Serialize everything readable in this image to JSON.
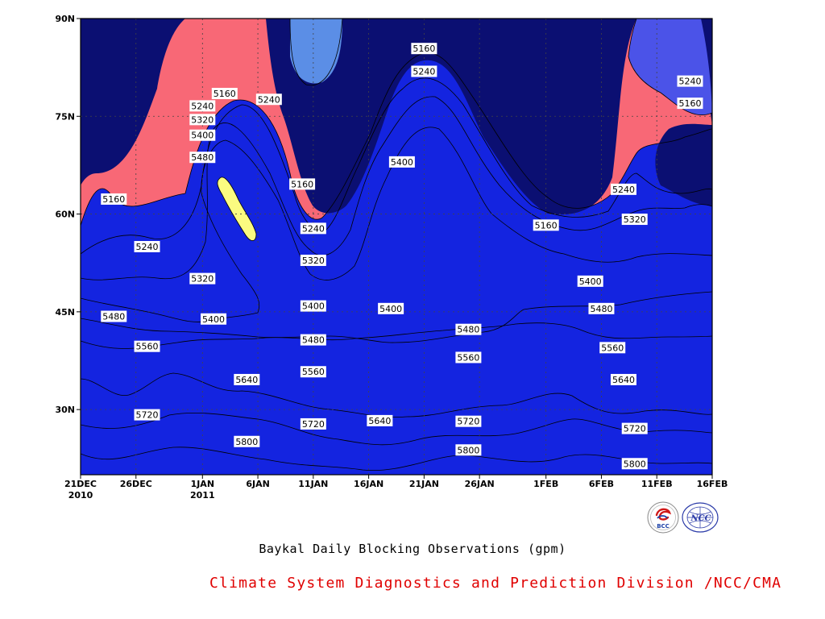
{
  "chart_data": {
    "type": "heatmap",
    "subtype": "filled-contour",
    "title": "Baykal Daily Blocking Observations (gpm)",
    "x_axis": {
      "type": "date",
      "range": [
        "2010-12-21",
        "2011-02-16"
      ],
      "ticks": [
        {
          "date": "2010-12-21",
          "label": "21DEC",
          "sublabel": "2010"
        },
        {
          "date": "2010-12-26",
          "label": "26DEC",
          "sublabel": ""
        },
        {
          "date": "2011-01-01",
          "label": "1JAN",
          "sublabel": "2011"
        },
        {
          "date": "2011-01-06",
          "label": "6JAN",
          "sublabel": ""
        },
        {
          "date": "2011-01-11",
          "label": "11JAN",
          "sublabel": ""
        },
        {
          "date": "2011-01-16",
          "label": "16JAN",
          "sublabel": ""
        },
        {
          "date": "2011-01-21",
          "label": "21JAN",
          "sublabel": ""
        },
        {
          "date": "2011-01-26",
          "label": "26JAN",
          "sublabel": ""
        },
        {
          "date": "2011-02-01",
          "label": "1FEB",
          "sublabel": ""
        },
        {
          "date": "2011-02-06",
          "label": "6FEB",
          "sublabel": ""
        },
        {
          "date": "2011-02-11",
          "label": "11FEB",
          "sublabel": ""
        },
        {
          "date": "2011-02-16",
          "label": "16FEB",
          "sublabel": ""
        }
      ]
    },
    "y_axis": {
      "range": [
        20,
        90
      ],
      "ticks": [
        {
          "value": 30,
          "label": "30N"
        },
        {
          "value": 45,
          "label": "45N"
        },
        {
          "value": 60,
          "label": "60N"
        },
        {
          "value": 75,
          "label": "75N"
        },
        {
          "value": 90,
          "label": "90N"
        }
      ]
    },
    "grid": true,
    "levels": [
      5160,
      5240,
      5320,
      5400,
      5480,
      5560,
      5640,
      5720,
      5800
    ],
    "fill_colors": [
      "#0b0f72",
      "#1424e0",
      "#4b53e8",
      "#5b8ee6",
      "#6ac8fa",
      "#fbfb80",
      "#fde3a4",
      "#fca86c",
      "#fb7a46",
      "#f86876"
    ],
    "contour_labels": [
      {
        "value": 5160,
        "date": "2010-12-24",
        "lat": 62.3
      },
      {
        "value": 5240,
        "date": "2010-12-27",
        "lat": 55.0
      },
      {
        "value": 5320,
        "date": "2011-01-01",
        "lat": 50.1
      },
      {
        "value": 5400,
        "date": "2011-01-02",
        "lat": 43.9
      },
      {
        "value": 5480,
        "date": "2010-12-24",
        "lat": 44.3
      },
      {
        "value": 5560,
        "date": "2010-12-27",
        "lat": 39.7
      },
      {
        "value": 5640,
        "date": "2011-01-05",
        "lat": 34.6
      },
      {
        "value": 5720,
        "date": "2010-12-27",
        "lat": 29.2
      },
      {
        "value": 5800,
        "date": "2011-01-05",
        "lat": 25.1
      },
      {
        "value": 5160,
        "date": "2011-01-03",
        "lat": 78.5
      },
      {
        "value": 5240,
        "date": "2011-01-01",
        "lat": 76.6
      },
      {
        "value": 5320,
        "date": "2011-01-01",
        "lat": 74.5
      },
      {
        "value": 5400,
        "date": "2011-01-01",
        "lat": 72.1
      },
      {
        "value": 5480,
        "date": "2011-01-01",
        "lat": 68.7
      },
      {
        "value": 5240,
        "date": "2011-01-07",
        "lat": 77.6
      },
      {
        "value": 5160,
        "date": "2011-01-10",
        "lat": 64.6
      },
      {
        "value": 5240,
        "date": "2011-01-11",
        "lat": 57.8
      },
      {
        "value": 5320,
        "date": "2011-01-11",
        "lat": 52.9
      },
      {
        "value": 5400,
        "date": "2011-01-11",
        "lat": 45.9
      },
      {
        "value": 5480,
        "date": "2011-01-11",
        "lat": 40.7
      },
      {
        "value": 5560,
        "date": "2011-01-11",
        "lat": 35.8
      },
      {
        "value": 5720,
        "date": "2011-01-11",
        "lat": 27.8
      },
      {
        "value": 5400,
        "date": "2011-01-18",
        "lat": 45.5
      },
      {
        "value": 5640,
        "date": "2011-01-17",
        "lat": 28.3
      },
      {
        "value": 5160,
        "date": "2011-01-21",
        "lat": 85.4
      },
      {
        "value": 5240,
        "date": "2011-01-21",
        "lat": 81.9
      },
      {
        "value": 5400,
        "date": "2011-01-19",
        "lat": 68.0
      },
      {
        "value": 5480,
        "date": "2011-01-25",
        "lat": 42.3
      },
      {
        "value": 5560,
        "date": "2011-01-25",
        "lat": 38.0
      },
      {
        "value": 5720,
        "date": "2011-01-25",
        "lat": 28.2
      },
      {
        "value": 5800,
        "date": "2011-01-25",
        "lat": 23.8
      },
      {
        "value": 5160,
        "date": "2011-02-01",
        "lat": 58.3
      },
      {
        "value": 5400,
        "date": "2011-02-05",
        "lat": 49.7
      },
      {
        "value": 5480,
        "date": "2011-02-06",
        "lat": 45.5
      },
      {
        "value": 5560,
        "date": "2011-02-07",
        "lat": 39.5
      },
      {
        "value": 5640,
        "date": "2011-02-08",
        "lat": 34.6
      },
      {
        "value": 5720,
        "date": "2011-02-09",
        "lat": 27.1
      },
      {
        "value": 5800,
        "date": "2011-02-09",
        "lat": 21.7
      },
      {
        "value": 5240,
        "date": "2011-02-08",
        "lat": 63.8
      },
      {
        "value": 5320,
        "date": "2011-02-09",
        "lat": 59.2
      },
      {
        "value": 5240,
        "date": "2011-02-14",
        "lat": 80.4
      },
      {
        "value": 5160,
        "date": "2011-02-14",
        "lat": 77.0
      }
    ]
  },
  "logos": {
    "bcc": "BCC",
    "ncc": "NCC"
  },
  "caption": {
    "title": "Baykal Daily Blocking Observations (gpm)",
    "credit": "Climate System Diagnostics and Prediction Division /NCC/CMA"
  }
}
